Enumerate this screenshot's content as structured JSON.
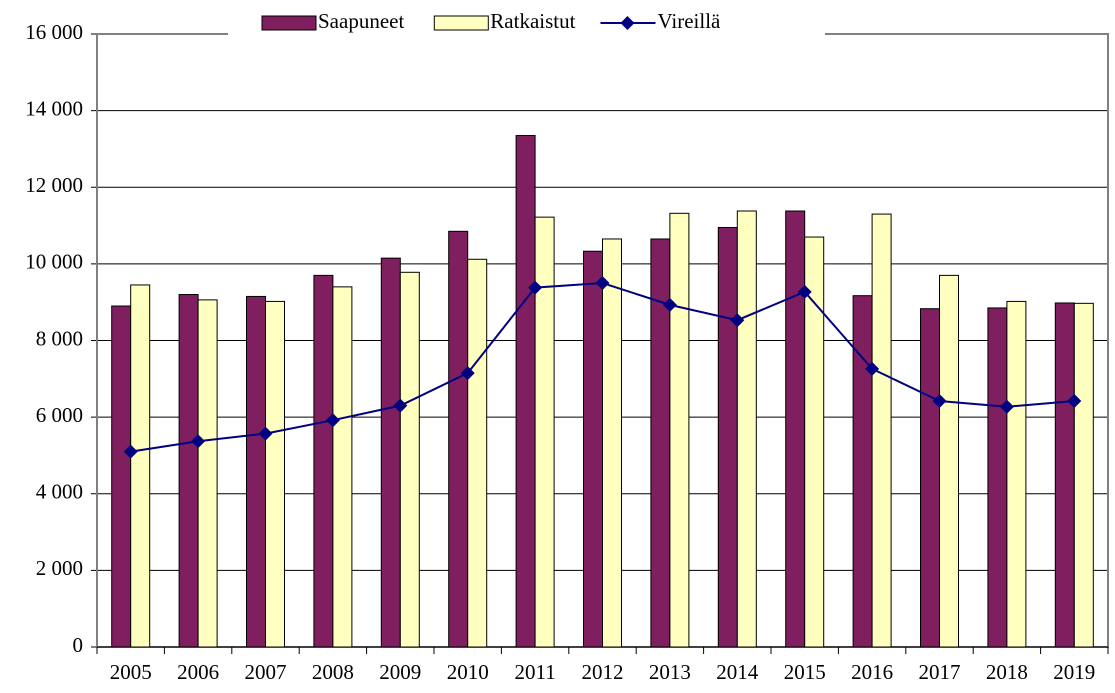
{
  "chart_data": {
    "type": "bar_line",
    "categories": [
      "2005",
      "2006",
      "2007",
      "2008",
      "2009",
      "2010",
      "2011",
      "2012",
      "2013",
      "2014",
      "2015",
      "2016",
      "2017",
      "2018",
      "2019"
    ],
    "series": [
      {
        "name": "Saapuneet",
        "color": "#7f1f5f",
        "type": "bar",
        "values": [
          8900,
          9200,
          9150,
          9700,
          10150,
          10850,
          13350,
          10330,
          10650,
          10950,
          11380,
          9170,
          8830,
          8850,
          8980
        ]
      },
      {
        "name": "Ratkaistut",
        "color": "#ffffc0",
        "type": "bar",
        "values": [
          9450,
          9060,
          9020,
          9400,
          9780,
          10120,
          11220,
          10650,
          11320,
          11380,
          10700,
          11300,
          9700,
          9020,
          8970
        ]
      },
      {
        "name": "Vireillä",
        "color": "#000080",
        "type": "line",
        "values": [
          5100,
          5370,
          5570,
          5920,
          6300,
          7150,
          9380,
          9500,
          8930,
          8530,
          9270,
          7260,
          6420,
          6270,
          6420
        ]
      }
    ],
    "ylim": [
      0,
      16000
    ],
    "yticks": [
      0,
      {
        "value": 2000,
        "label": "2 000"
      },
      {
        "value": 4000,
        "label": "4 000"
      },
      {
        "value": 6000,
        "label": "6 000"
      },
      {
        "value": 8000,
        "label": "8 000"
      },
      {
        "value": 10000,
        "label": "10 000"
      },
      {
        "value": 12000,
        "label": "12 000"
      },
      {
        "value": 14000,
        "label": "14 000"
      },
      {
        "value": 16000,
        "label": "16 000"
      }
    ],
    "grid": true,
    "legend": "top"
  }
}
